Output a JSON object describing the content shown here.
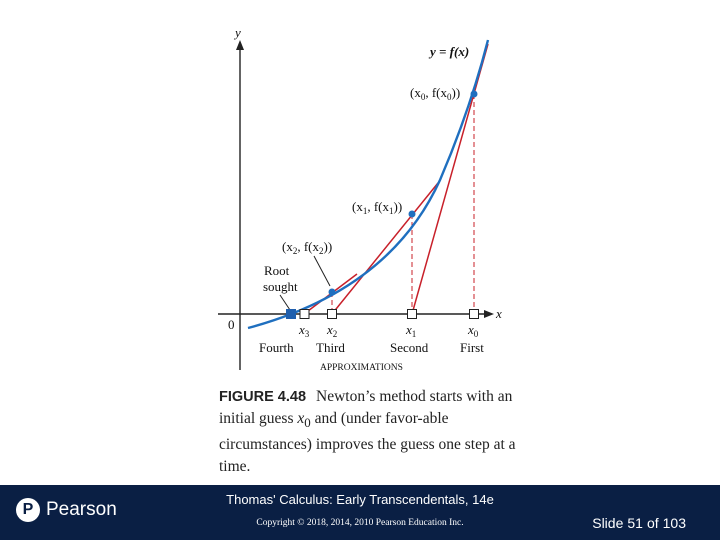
{
  "figure": {
    "y_axis_label": "y",
    "x_axis_label": "x",
    "origin_label": "0",
    "curve_label": "y = f(x)",
    "points": [
      {
        "id": "p0",
        "label_a": "(x",
        "sub_a": "0",
        "label_b": ", f(x",
        "sub_b": "0",
        "label_c": "))"
      },
      {
        "id": "p1",
        "label_a": "(x",
        "sub_a": "1",
        "label_b": ", f(x",
        "sub_b": "1",
        "label_c": "))"
      },
      {
        "id": "p2",
        "label_a": "(x",
        "sub_a": "2",
        "label_b": ", f(x",
        "sub_b": "2",
        "label_c": "))"
      }
    ],
    "root_label_line1": "Root",
    "root_label_line2": "sought",
    "x_ticks": [
      {
        "var": "x",
        "sub": "3",
        "approx": "Fourth"
      },
      {
        "var": "x",
        "sub": "2",
        "approx": "Third"
      },
      {
        "var": "x",
        "sub": "1",
        "approx": "Second"
      },
      {
        "var": "x",
        "sub": "0",
        "approx": "First"
      }
    ],
    "approximations_label": "APPROXIMATIONS",
    "colors": {
      "curve": "#1f6fbf",
      "tangent": "#c8202a",
      "guide": "#c8202a",
      "axis": "#222222"
    }
  },
  "caption": {
    "label": "FIGURE 4.48",
    "text_a": "Newton’s method starts with an initial guess ",
    "var": "x",
    "sub": "0",
    "text_b": " and (under favor-able circumstances) improves the guess one step at a time."
  },
  "footer": {
    "book_title": "Thomas' Calculus: Early Transcendentals, 14e",
    "copyright": "Copyright © 2018, 2014, 2010 Pearson Education Inc.",
    "slide_prefix": "Slide",
    "slide_number": "51",
    "slide_of": "of",
    "slide_total": "103",
    "logo_mark": "P",
    "logo_word": "Pearson"
  }
}
